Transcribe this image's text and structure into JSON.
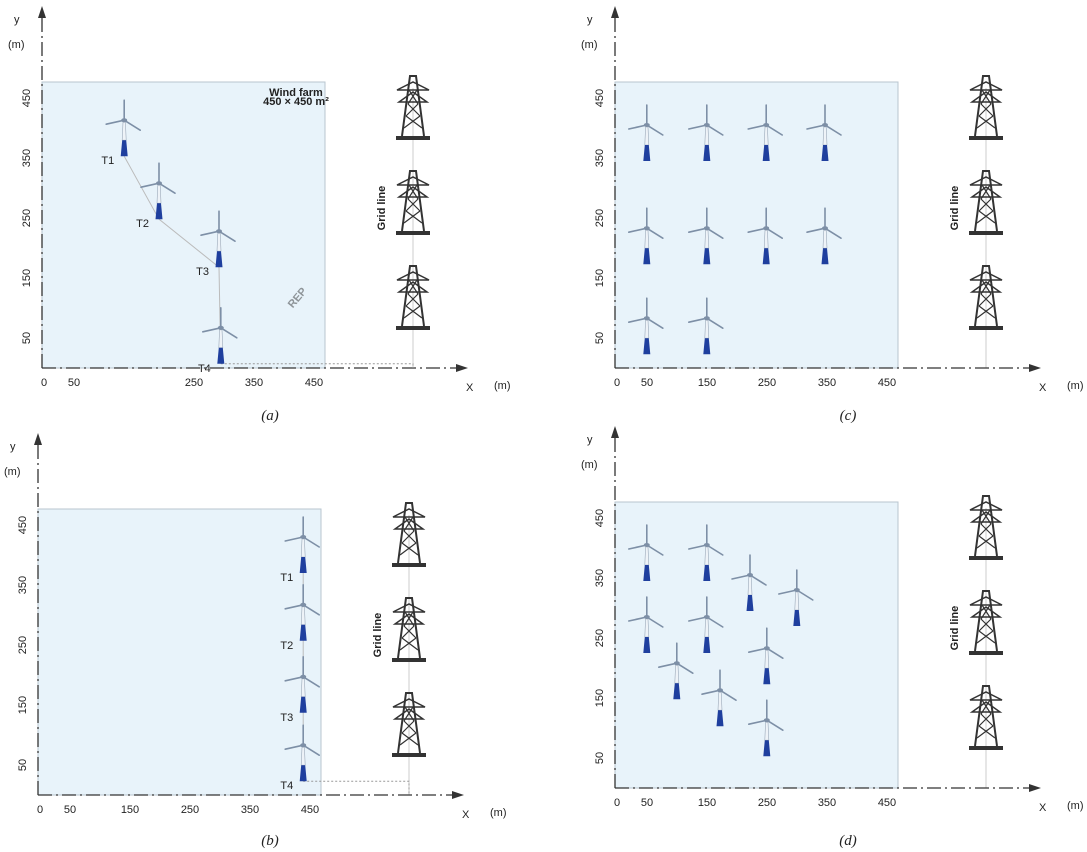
{
  "watermark": "REP",
  "panels": [
    {
      "caption": "(a)",
      "y_label": "y",
      "y_unit": "(m)",
      "x_label": "X",
      "x_unit": "(m)",
      "x_ticks": [
        0,
        50,
        250,
        350,
        450
      ],
      "y_ticks": [
        50,
        150,
        250,
        350,
        450
      ],
      "grid_label": "Grid line",
      "farm_label": "Wind farm",
      "farm_size": "450 × 450 m²",
      "turbines": [
        {
          "label": "T1",
          "x": 137,
          "y": 413
        },
        {
          "label": "T2",
          "x": 195,
          "y": 308
        },
        {
          "label": "T3",
          "x": 295,
          "y": 228
        },
        {
          "label": "T4",
          "x": 298,
          "y": 67
        }
      ]
    },
    {
      "caption": "(b)",
      "y_label": "y",
      "y_unit": "(m)",
      "x_label": "X",
      "x_unit": "(m)",
      "x_ticks": [
        0,
        50,
        150,
        250,
        350,
        450
      ],
      "y_ticks": [
        50,
        150,
        250,
        350,
        450
      ],
      "grid_label": "Grid line",
      "turbines": [
        {
          "label": "T1",
          "x": 442,
          "y": 430
        },
        {
          "label": "T2",
          "x": 442,
          "y": 317
        },
        {
          "label": "T3",
          "x": 442,
          "y": 197
        },
        {
          "label": "T4",
          "x": 442,
          "y": 83
        }
      ]
    },
    {
      "caption": "(c)",
      "y_label": "y",
      "y_unit": "(m)",
      "x_label": "X",
      "x_unit": "(m)",
      "x_ticks": [
        0,
        50,
        150,
        250,
        350,
        450
      ],
      "y_ticks": [
        50,
        150,
        250,
        350,
        450
      ],
      "grid_label": "Grid line",
      "turbines": [
        {
          "x": 53,
          "y": 405
        },
        {
          "x": 153,
          "y": 405
        },
        {
          "x": 252,
          "y": 405
        },
        {
          "x": 350,
          "y": 405
        },
        {
          "x": 53,
          "y": 233
        },
        {
          "x": 153,
          "y": 233
        },
        {
          "x": 252,
          "y": 233
        },
        {
          "x": 350,
          "y": 233
        },
        {
          "x": 53,
          "y": 83
        },
        {
          "x": 153,
          "y": 83
        }
      ]
    },
    {
      "caption": "(d)",
      "y_label": "y",
      "y_unit": "(m)",
      "x_label": "X",
      "x_unit": "(m)",
      "x_ticks": [
        0,
        50,
        150,
        250,
        350,
        450
      ],
      "y_ticks": [
        50,
        150,
        250,
        350,
        450
      ],
      "grid_label": "Grid line",
      "turbines": [
        {
          "x": 53,
          "y": 405
        },
        {
          "x": 153,
          "y": 405
        },
        {
          "x": 225,
          "y": 355
        },
        {
          "x": 303,
          "y": 330
        },
        {
          "x": 53,
          "y": 285
        },
        {
          "x": 153,
          "y": 285
        },
        {
          "x": 253,
          "y": 233
        },
        {
          "x": 103,
          "y": 208
        },
        {
          "x": 175,
          "y": 163
        },
        {
          "x": 253,
          "y": 113
        }
      ]
    }
  ]
}
